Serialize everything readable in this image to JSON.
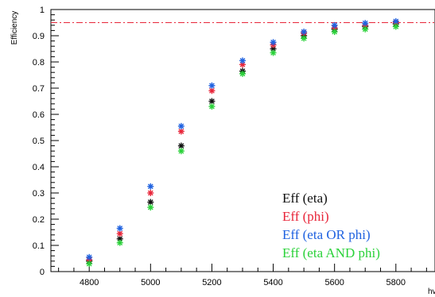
{
  "chart_data": {
    "type": "scatter",
    "ylabel": "Efficiency",
    "xlabel": "hv",
    "xlim": [
      4675,
      5925
    ],
    "ylim": [
      0,
      1
    ],
    "x_ticks": [
      4800,
      5000,
      5200,
      5400,
      5600,
      5800
    ],
    "x_tick_labels": [
      "4800",
      "5000",
      "5200",
      "5400",
      "5600",
      "5800"
    ],
    "y_ticks": [
      0,
      0.1,
      0.2,
      0.3,
      0.4,
      0.5,
      0.6,
      0.7,
      0.8,
      0.9,
      1
    ],
    "y_tick_labels": [
      "0",
      "0.1",
      "0.2",
      "0.3",
      "0.4",
      "0.5",
      "0.6",
      "0.7",
      "0.8",
      "0.9",
      "1"
    ],
    "reference_line": {
      "y": 0.95,
      "color": "#e8263a",
      "style": "dash-dot"
    },
    "grid": false,
    "legend_position": "bottom-right",
    "marker": "asterisk",
    "x": [
      4800,
      4900,
      5000,
      5100,
      5200,
      5300,
      5400,
      5500,
      5600,
      5700,
      5800
    ],
    "series": [
      {
        "name": "Eff (eta)",
        "color": "#111111",
        "values": [
          0.04,
          0.125,
          0.265,
          0.48,
          0.65,
          0.765,
          0.85,
          0.9,
          0.925,
          0.935,
          0.945
        ]
      },
      {
        "name": "Eff (phi)",
        "color": "#e8263a",
        "values": [
          0.045,
          0.145,
          0.3,
          0.535,
          0.69,
          0.79,
          0.865,
          0.91,
          0.93,
          0.94,
          0.95
        ]
      },
      {
        "name": "Eff (eta OR phi)",
        "color": "#1f62e0",
        "values": [
          0.055,
          0.165,
          0.325,
          0.555,
          0.71,
          0.805,
          0.875,
          0.915,
          0.94,
          0.948,
          0.955
        ]
      },
      {
        "name": "Eff (eta AND phi)",
        "color": "#2bd23a",
        "values": [
          0.03,
          0.11,
          0.245,
          0.46,
          0.63,
          0.755,
          0.835,
          0.89,
          0.915,
          0.925,
          0.935
        ]
      }
    ]
  }
}
